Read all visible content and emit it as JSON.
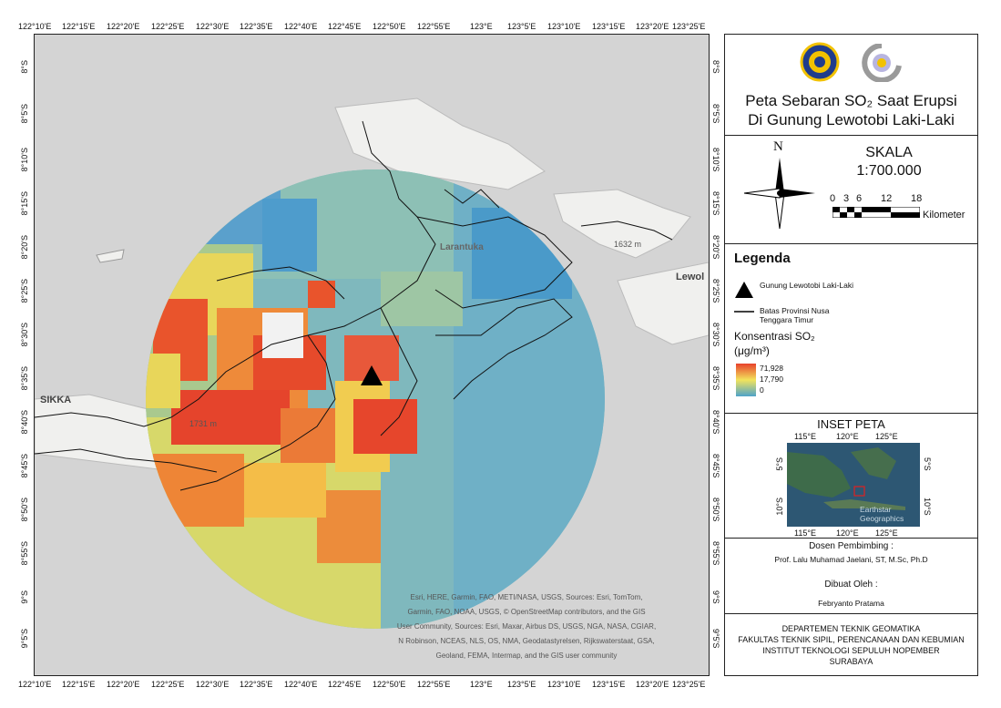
{
  "map": {
    "lon_ticks": [
      "122°10'E",
      "122°15'E",
      "122°20'E",
      "122°25'E",
      "122°30'E",
      "122°35'E",
      "122°40'E",
      "122°45'E",
      "122°50'E",
      "122°55'E",
      "123°E",
      "123°5'E",
      "123°10'E",
      "123°15'E",
      "123°20'E",
      "123°25'E"
    ],
    "lat_ticks_left": [
      "8°S",
      "8°5'S",
      "8°10'S",
      "8°15'S",
      "8°20'S",
      "8°25'S",
      "8°30'S",
      "8°35'S",
      "8°40'S",
      "8°45'S",
      "8°50'S",
      "8°55'S",
      "9°S",
      "9°5'S"
    ],
    "lat_ticks_right": [
      "8°S",
      "8°5'S",
      "8°10'S",
      "8°15'S",
      "8°20'S",
      "8°25'S",
      "8°30'S",
      "8°35'S",
      "8°40'S",
      "8°45'S",
      "8°50'S",
      "8°55'S",
      "9°S",
      "9°5'S"
    ],
    "place_labels": {
      "larantuka": "Larantuka",
      "sikka": "SIKKA",
      "lewoleba": "Lewol",
      "peak1": "1632 m",
      "peak2": "1731 m"
    },
    "attribution": [
      "Esri, HERE, Garmin, FAO, METI/NASA, USGS, Sources: Esri, TomTom,",
      "Garmin, FAO, NOAA, USGS, © OpenStreetMap contributors, and the GIS",
      "User Community, Sources: Esri, Maxar, Airbus DS, USGS, NGA, NASA, CGIAR,",
      "N Robinson, NCEAS, NLS, OS, NMA, Geodatastyrelsen, Rijkswaterstaat, GSA,",
      "Geoland, FEMA, Intermap, and the GIS user community"
    ],
    "colors": {
      "high": "#e8412c",
      "mid": "#f2e35c",
      "low": "#4ea3c9",
      "marker": "#000000",
      "land": "#f0f0ee",
      "sea": "#d6d6d6"
    }
  },
  "panel": {
    "title_line1": "Peta Sebaran SO₂ Saat Erupsi",
    "title_line2": "Di Gunung Lewotobi Laki-Laki",
    "north": "N",
    "scale_heading": "SKALA",
    "scale_value": "1:700.000",
    "scale_ticks": [
      "0",
      "3",
      "6",
      "12",
      "18"
    ],
    "scale_unit": "Kilometer",
    "legend_heading": "Legenda",
    "legend_volcano": "Gunung Lewotobi Laki-Laki",
    "legend_boundary": "Batas Provinsi Nusa Tenggara Timur",
    "legend_conc": "Konsentrasi SO₂",
    "legend_unit": "(μg/m³)",
    "legend_max": "71,928",
    "legend_mid": "17,790",
    "legend_min": "0",
    "inset_title": "INSET PETA",
    "inset_top_ticks": [
      "115°E",
      "120°E",
      "125°E"
    ],
    "inset_bottom_ticks": [
      "115°E",
      "120°E",
      "125°E"
    ],
    "inset_left_ticks": [
      "5°S",
      "10°S"
    ],
    "inset_right_ticks": [
      "5°S",
      "10°S"
    ],
    "inset_credit": [
      "Earthstar",
      "Geographics"
    ],
    "supervisor_label": "Dosen Pembimbing :",
    "supervisor_name": "Prof. Lalu Muhamad Jaelani, ST, M.Sc, Ph.D",
    "author_label": "Dibuat Oleh :",
    "author_name": "Febryanto Pratama",
    "institution": [
      "DEPARTEMEN TEKNIK GEOMATIKA",
      "FAKULTAS TEKNIK SIPIL, PERENCANAAN DAN KEBUMIAN",
      "INSTITUT TEKNOLOGI SEPULUH NOPEMBER",
      "SURABAYA"
    ]
  }
}
